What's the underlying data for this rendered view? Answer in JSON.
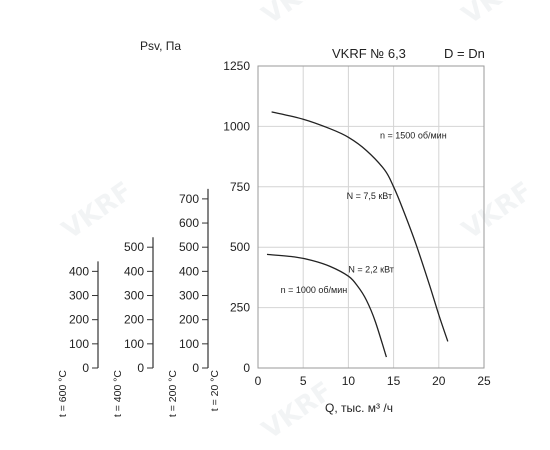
{
  "chart_data": {
    "type": "line",
    "title": "VKRF № 6,3",
    "subtitle": "D = Dn",
    "ylabel": "Psv, Па",
    "xlabel": "Q, тыс. м³ /ч",
    "xlim": [
      0,
      25
    ],
    "x_ticks": [
      "0",
      "5",
      "10",
      "15",
      "20",
      "25"
    ],
    "ylim": [
      0,
      1250
    ],
    "y_ticks": [
      "250",
      "500",
      "750",
      "1000",
      "1250"
    ],
    "grid": true,
    "extra_axes": [
      {
        "label": "t = 600 °C",
        "max": 400,
        "ticks": [
          "0",
          "100",
          "200",
          "300",
          "400"
        ]
      },
      {
        "label": "t = 400 °C",
        "max": 500,
        "ticks": [
          "0",
          "100",
          "200",
          "300",
          "400",
          "500"
        ]
      },
      {
        "label": "t = 200 °C",
        "max": 700,
        "ticks": [
          "0",
          "100",
          "200",
          "300",
          "400",
          "500",
          "600",
          "700"
        ]
      },
      {
        "label": "t = 20 °C",
        "max": 1250,
        "ticks": [
          "0"
        ]
      }
    ],
    "series": [
      {
        "name": "n = 1500 об/мин",
        "x": [
          1.5,
          5,
          8,
          10,
          12,
          14,
          15,
          16,
          17.5,
          19,
          20,
          21
        ],
        "y": [
          1060,
          1030,
          990,
          955,
          900,
          820,
          750,
          660,
          510,
          340,
          220,
          110
        ]
      },
      {
        "name": "n = 1000 об/мин",
        "x": [
          1,
          4,
          6,
          8,
          10,
          11,
          12,
          13,
          14.2
        ],
        "y": [
          470,
          460,
          445,
          420,
          380,
          340,
          280,
          190,
          45
        ]
      }
    ],
    "annotations": [
      {
        "text": "n = 1500 об/мин",
        "x": 13.5,
        "y": 950
      },
      {
        "text": "N = 7,5 кВт",
        "x": 9.8,
        "y": 700
      },
      {
        "text": "N = 2,2 кВт",
        "x": 10,
        "y": 395
      },
      {
        "text": "n = 1000 об/мин",
        "x": 2.5,
        "y": 310
      }
    ]
  }
}
